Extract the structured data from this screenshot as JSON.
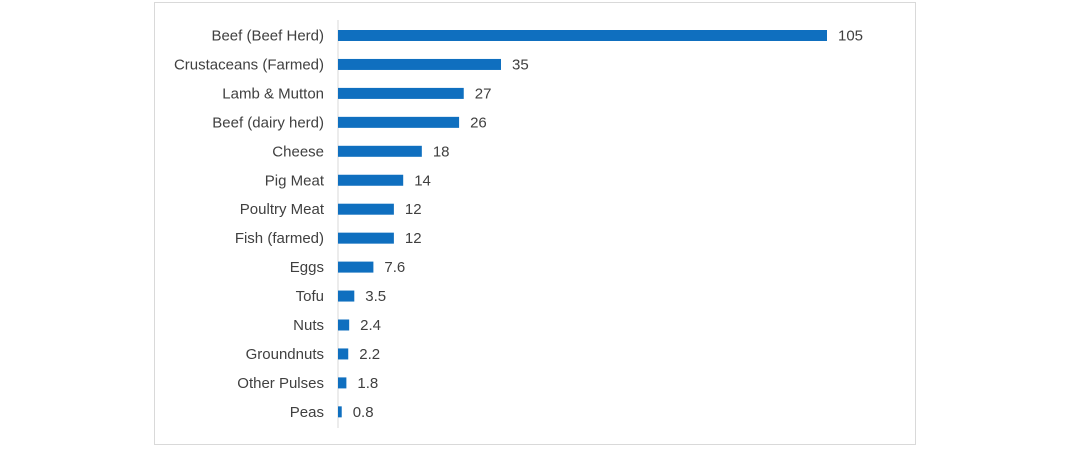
{
  "chart_data": {
    "type": "bar",
    "orientation": "horizontal",
    "title": "",
    "xlabel": "",
    "ylabel": "",
    "categories": [
      "Beef (Beef Herd)",
      "Crustaceans (Farmed)",
      "Lamb & Mutton",
      "Beef (dairy herd)",
      "Cheese",
      "Pig Meat",
      "Poultry Meat",
      "Fish (farmed)",
      "Eggs",
      "Tofu",
      "Nuts",
      "Groundnuts",
      "Other Pulses",
      "Peas"
    ],
    "values": [
      105,
      35,
      27,
      26,
      18,
      14,
      12,
      12,
      7.6,
      3.5,
      2.4,
      2.2,
      1.8,
      0.8
    ],
    "value_labels": [
      "105",
      "35",
      "27",
      "26",
      "18",
      "14",
      "12",
      "12",
      "7.6",
      "3.5",
      "2.4",
      "2.2",
      "1.8",
      "0.8"
    ],
    "xlim": [
      0,
      105
    ],
    "grid": false,
    "legend": "none",
    "bar_color": "#0F6FBF",
    "axis_color": "#d9d9d9",
    "label_color": "#404040"
  }
}
